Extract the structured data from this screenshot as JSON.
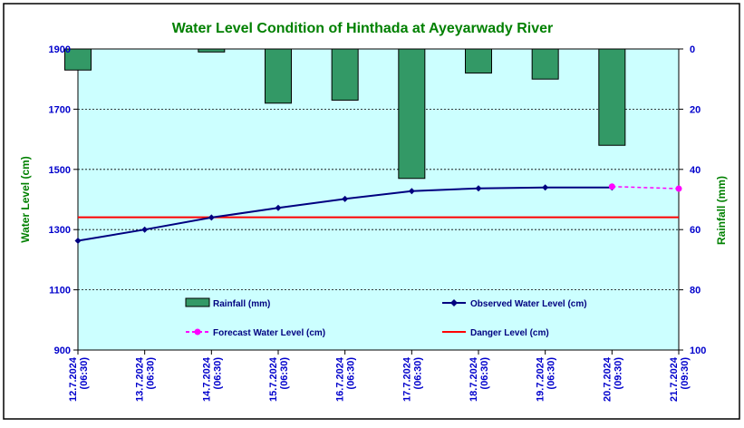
{
  "chart_data": {
    "type": "bar+line",
    "title": "Water Level Condition of Hinthada at Ayeyarwady River",
    "ylabel_left": "Water Level (cm)",
    "ylabel_right": "Rainfall (mm)",
    "y_left_lim": [
      900,
      1900
    ],
    "y_left_ticks": [
      "1900",
      "1700",
      "1500",
      "1300",
      "1100",
      "900"
    ],
    "y_right_lim": [
      0,
      100
    ],
    "y_right_inverted": true,
    "y_right_ticks": [
      "0",
      "20",
      "40",
      "60",
      "80",
      "100"
    ],
    "categories": [
      "12.7.2024 (06:30)",
      "13.7.2024 (06:30)",
      "14.7.2024 (06:30)",
      "15.7.2024 (06:30)",
      "16.7.2024 (06:30)",
      "17.7.2024 (06:30)",
      "18.7.2024 (06:30)",
      "19.7.2024 (06:30)",
      "20.7.2024 (09:30)",
      "21.7.2024 (09:30)"
    ],
    "series": [
      {
        "name": "Rainfall (mm)",
        "kind": "bar",
        "axis": "right",
        "color": "#339966",
        "values": [
          7,
          null,
          1,
          18,
          17,
          43,
          8,
          10,
          32,
          null
        ]
      },
      {
        "name": "Observed Water Level (cm)",
        "kind": "line",
        "axis": "left",
        "color": "#000080",
        "values": [
          1263,
          1300,
          1340,
          1372,
          1402,
          1428,
          1437,
          1440,
          1440,
          null
        ]
      },
      {
        "name": "Forecast Water Level (cm)",
        "kind": "dashed-line",
        "axis": "left",
        "color": "#ff00ff",
        "values": [
          null,
          null,
          null,
          null,
          null,
          null,
          null,
          null,
          1443,
          1436
        ]
      },
      {
        "name": "Danger Level (cm)",
        "kind": "hline",
        "axis": "left",
        "color": "#ff0000",
        "value": 1341
      }
    ],
    "grid": true,
    "legend_placement": "bottom-inside",
    "colors": {
      "plot_background": "#ccffff",
      "title_text": "#008000",
      "axis_text": "#0000cc",
      "axis_label_text": "#008000",
      "legend_text": "#000080",
      "frame": "#000000"
    }
  }
}
